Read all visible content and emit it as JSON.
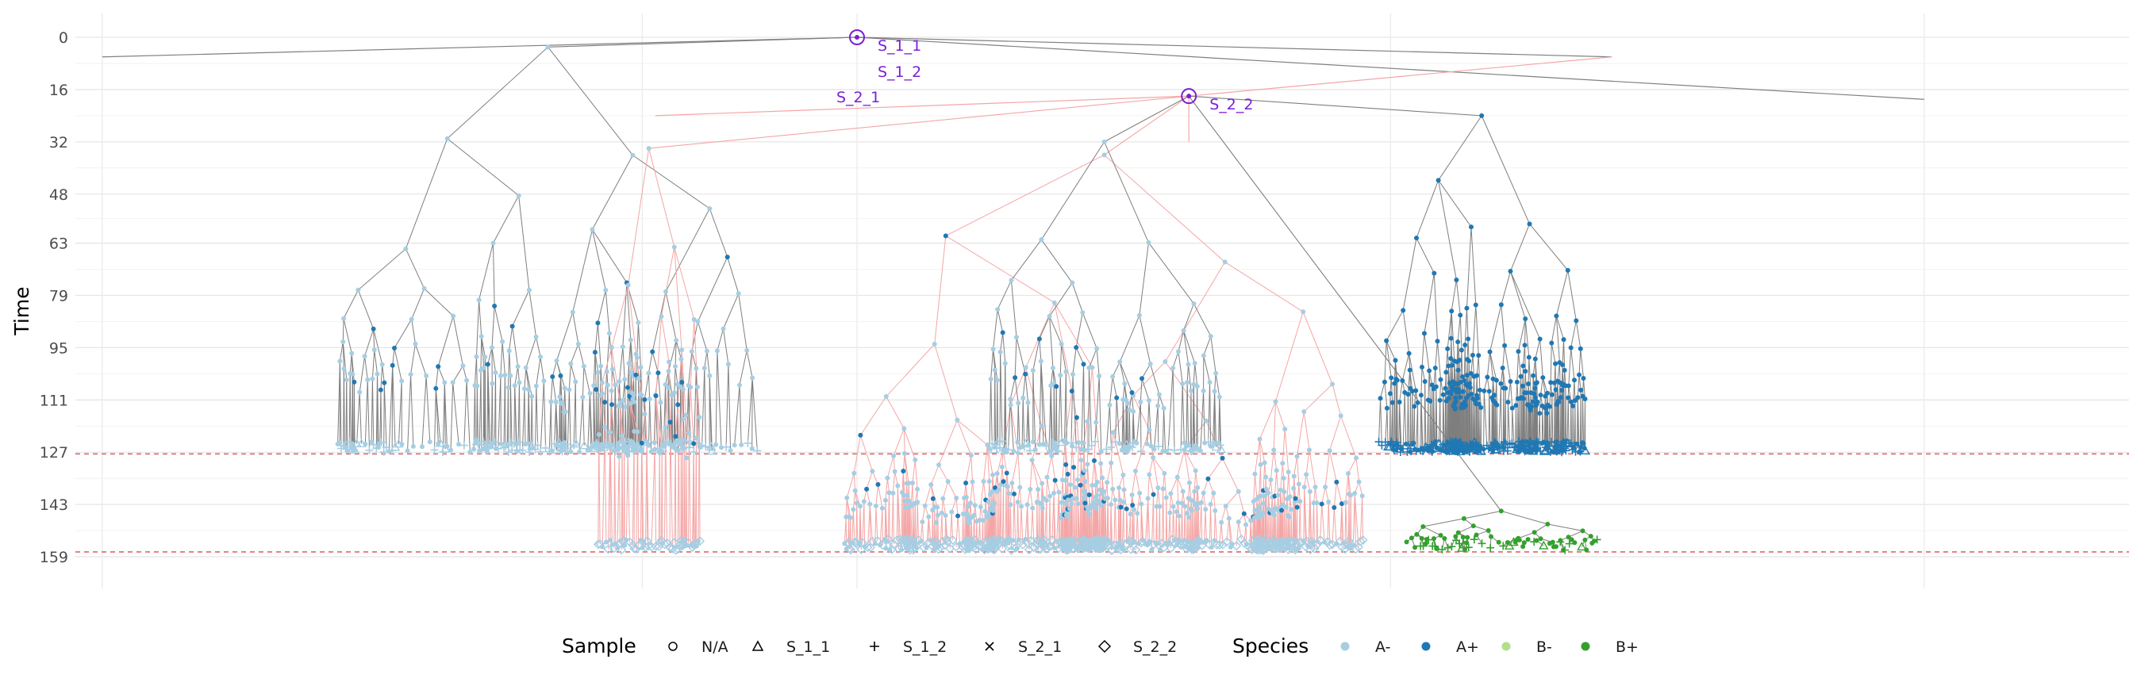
{
  "chart_data": {
    "type": "scatter",
    "subtype": "lineage-tree",
    "ylabel": "Time",
    "xlabel": "",
    "ylim": [
      0,
      159
    ],
    "y_reversed": true,
    "yticks": [
      0,
      16,
      32,
      48,
      63,
      79,
      95,
      111,
      127,
      143,
      159
    ],
    "grid": true,
    "reference_lines": [
      {
        "y": 127.5,
        "color": "#e06666",
        "style": "dashed"
      },
      {
        "y": 157.5,
        "color": "#e06666",
        "style": "dashed"
      }
    ],
    "annotations": [
      {
        "label": "S_1_1",
        "x": 0,
        "y": 0
      },
      {
        "label": "S_1_2",
        "x": 0,
        "y": 0
      },
      {
        "label": "S_2_1",
        "x": 0,
        "y": 0
      },
      {
        "label": "S_2_2",
        "x": 0.255,
        "y": 18
      }
    ],
    "legend": {
      "placement": "bottom",
      "sample": {
        "title": "Sample",
        "entries": [
          {
            "label": "N/A",
            "shape": "circle"
          },
          {
            "label": "S_1_1",
            "shape": "triangle"
          },
          {
            "label": "S_1_2",
            "shape": "plus"
          },
          {
            "label": "S_2_1",
            "shape": "cross"
          },
          {
            "label": "S_2_2",
            "shape": "diamond"
          }
        ]
      },
      "species": {
        "title": "Species",
        "entries": [
          {
            "label": "A-",
            "color": "#a6cee3"
          },
          {
            "label": "A+",
            "color": "#1f78b4"
          },
          {
            "label": "B-",
            "color": "#b2df8a"
          },
          {
            "label": "B+",
            "color": "#33a02c"
          }
        ]
      }
    },
    "edge_colors": {
      "A": "#7f7f7f",
      "B": "#f4a6a6"
    },
    "clades": [
      {
        "xrange": [
          -0.4,
          -0.075
        ],
        "root_y": 3,
        "leaf_y": 127,
        "species": "A-",
        "edge": "A",
        "depth": 6
      },
      {
        "xrange": [
          -0.2,
          -0.12
        ],
        "root_y": 34,
        "leaf_y": 157,
        "species": "A-",
        "edge": "B",
        "depth": 4
      },
      {
        "xrange": [
          -0.01,
          0.39
        ],
        "root_y": 36,
        "leaf_y": 157,
        "species": "A-",
        "edge": "B",
        "depth": 7
      },
      {
        "xrange": [
          0.1,
          0.28
        ],
        "root_y": 32,
        "leaf_y": 127,
        "species": "A-",
        "edge": "A",
        "depth": 5
      },
      {
        "xrange": [
          0.4,
          0.56
        ],
        "root_y": 24,
        "leaf_y": 127,
        "species": "A+",
        "edge": "A",
        "depth": 6
      },
      {
        "xrange": [
          0.42,
          0.57
        ],
        "root_y": 145,
        "leaf_y": 157,
        "species": "B+",
        "edge": "A",
        "depth": 4
      }
    ]
  }
}
